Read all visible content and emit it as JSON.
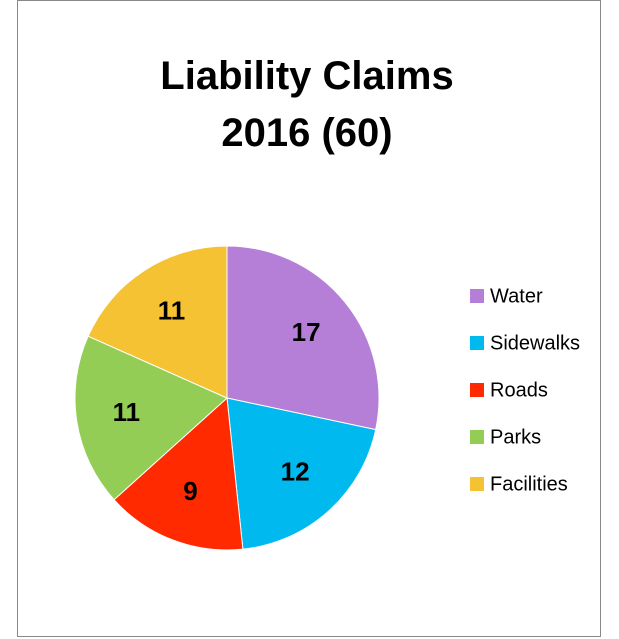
{
  "chart_data": {
    "type": "pie",
    "title": "Liability Claims 2016 (60)",
    "categories": [
      "Water",
      "Sidewalks",
      "Roads",
      "Parks",
      "Facilities"
    ],
    "values": [
      17,
      12,
      9,
      11,
      11
    ],
    "colors": [
      "#b57fd8",
      "#00b9ee",
      "#ff2a00",
      "#93cd55",
      "#f5c233"
    ],
    "legend": "right"
  }
}
